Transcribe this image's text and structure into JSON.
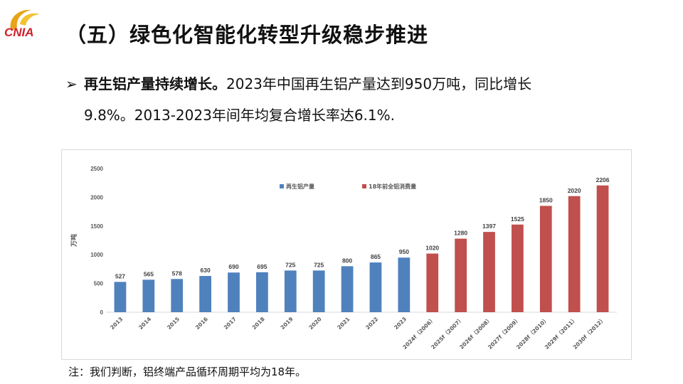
{
  "logo": {
    "text": "CNIA",
    "colors": {
      "ring": "#e8a317",
      "text": "#d0202a"
    }
  },
  "slide": {
    "title": "（五）绿色化智能化转型升级稳步推进",
    "bullet": {
      "marker": "➢",
      "bold": "再生铝产量持续增长。",
      "text1": "2023年中国再生铝产量达到950万吨，同比增长",
      "text2": "9.8%。2013-2023年间年均复合增长率达6.1%."
    },
    "note": "注：我们判断，铝终端产品循环周期平均为18年。"
  },
  "chart_data": {
    "type": "bar",
    "title": "",
    "ylabel": "万吨",
    "xlabel": "",
    "ylim": [
      0,
      2500
    ],
    "yticks": [
      0,
      500,
      1000,
      1500,
      2000,
      2500
    ],
    "grid": false,
    "legend_position": "top",
    "categories": [
      "2013",
      "2014",
      "2015",
      "2016",
      "2017",
      "2018",
      "2019",
      "2020",
      "2021",
      "2022",
      "2023",
      "2024f（2006）",
      "2025f（2007）",
      "2026f（2008）",
      "2027f（2009）",
      "2028f（2010）",
      "2029f（2011）",
      "2030f（2012）"
    ],
    "series": [
      {
        "name": "再生铝产量",
        "color": "#4f81bd",
        "values": [
          527,
          565,
          578,
          630,
          690,
          695,
          725,
          725,
          800,
          865,
          950,
          null,
          null,
          null,
          null,
          null,
          null,
          null
        ]
      },
      {
        "name": "18年前全铝消费量",
        "color": "#c0504d",
        "values": [
          null,
          null,
          null,
          null,
          null,
          null,
          null,
          null,
          null,
          null,
          null,
          1020,
          1280,
          1397,
          1525,
          1850,
          2020,
          2206
        ]
      }
    ]
  }
}
